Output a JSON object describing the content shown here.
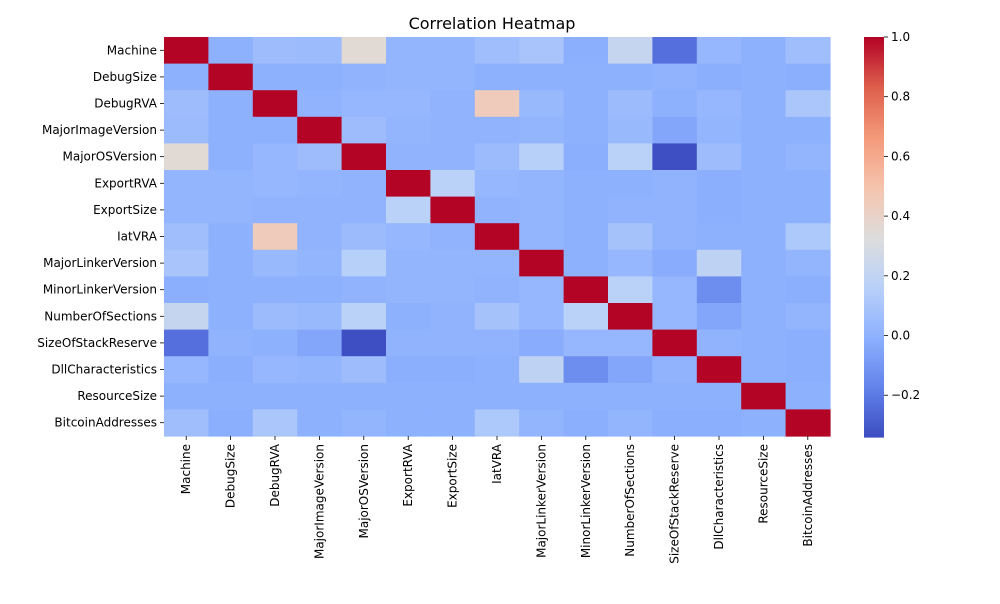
{
  "chart_data": {
    "type": "heatmap",
    "title": "Correlation Heatmap",
    "xlabel": "",
    "ylabel": "",
    "labels": [
      "Machine",
      "DebugSize",
      "DebugRVA",
      "MajorImageVersion",
      "MajorOSVersion",
      "ExportRVA",
      "ExportSize",
      "IatVRA",
      "MajorLinkerVersion",
      "MinorLinkerVersion",
      "NumberOfSections",
      "SizeOfStackReserve",
      "DllCharacteristics",
      "ResourceSize",
      "BitcoinAddresses"
    ],
    "matrix": [
      [
        1.0,
        0.0,
        0.06,
        0.05,
        0.36,
        0.02,
        0.02,
        0.07,
        0.1,
        -0.01,
        0.22,
        -0.23,
        0.03,
        0.0,
        0.07
      ],
      [
        0.0,
        1.0,
        0.0,
        0.0,
        0.01,
        0.02,
        0.02,
        0.0,
        0.0,
        0.0,
        0.0,
        0.01,
        -0.01,
        0.0,
        -0.01
      ],
      [
        0.06,
        0.0,
        1.0,
        0.01,
        0.03,
        0.03,
        0.01,
        0.45,
        0.04,
        0.0,
        0.05,
        0.0,
        0.03,
        0.0,
        0.11
      ],
      [
        0.05,
        0.0,
        0.0,
        1.0,
        0.06,
        0.02,
        0.01,
        0.01,
        0.02,
        0.0,
        0.04,
        -0.04,
        0.02,
        0.0,
        0.0
      ],
      [
        0.36,
        0.0,
        0.03,
        0.06,
        1.0,
        0.01,
        0.01,
        0.05,
        0.16,
        -0.01,
        0.17,
        -0.33,
        0.06,
        0.0,
        0.02
      ],
      [
        0.02,
        0.02,
        0.03,
        0.02,
        0.01,
        1.0,
        0.17,
        0.03,
        0.02,
        0.0,
        0.0,
        0.01,
        -0.01,
        0.0,
        0.0
      ],
      [
        0.02,
        0.02,
        0.01,
        0.01,
        0.01,
        0.17,
        1.0,
        0.01,
        0.02,
        0.0,
        0.01,
        0.01,
        -0.01,
        0.0,
        0.0
      ],
      [
        0.07,
        0.0,
        0.45,
        0.01,
        0.05,
        0.03,
        0.01,
        1.0,
        0.02,
        0.0,
        0.09,
        0.01,
        0.0,
        0.0,
        0.12
      ],
      [
        0.1,
        0.0,
        0.04,
        0.02,
        0.16,
        0.02,
        0.02,
        0.02,
        1.0,
        0.0,
        0.03,
        -0.02,
        0.19,
        0.0,
        0.02
      ],
      [
        -0.01,
        0.0,
        0.0,
        0.0,
        0.01,
        0.02,
        0.02,
        0.01,
        0.03,
        1.0,
        0.17,
        0.03,
        -0.13,
        0.0,
        -0.01
      ],
      [
        0.22,
        0.0,
        0.05,
        0.04,
        0.17,
        0.0,
        0.01,
        0.09,
        0.03,
        0.17,
        1.0,
        0.03,
        -0.04,
        0.0,
        0.02
      ],
      [
        -0.23,
        0.01,
        0.0,
        -0.04,
        -0.33,
        0.01,
        0.01,
        0.01,
        -0.02,
        0.03,
        0.03,
        1.0,
        0.01,
        0.0,
        -0.01
      ],
      [
        0.03,
        -0.01,
        0.03,
        0.02,
        0.06,
        -0.01,
        -0.01,
        0.0,
        0.19,
        -0.13,
        -0.04,
        0.01,
        1.0,
        0.0,
        -0.01
      ],
      [
        0.0,
        0.0,
        0.0,
        0.0,
        0.0,
        0.0,
        0.0,
        0.0,
        0.0,
        0.0,
        0.0,
        0.0,
        0.0,
        1.0,
        0.0
      ],
      [
        0.07,
        -0.01,
        0.11,
        0.0,
        0.02,
        0.0,
        0.0,
        0.12,
        0.02,
        -0.01,
        0.02,
        -0.01,
        -0.01,
        0.0,
        1.0
      ]
    ],
    "colormap": "coolwarm",
    "colorbar": {
      "vmin": -0.34,
      "vmax": 1.0,
      "ticks": [
        -0.2,
        0.0,
        0.2,
        0.4,
        0.6,
        0.8,
        1.0
      ],
      "tick_labels": [
        "−0.2",
        "0.0",
        "0.2",
        "0.4",
        "0.6",
        "0.8",
        "1.0"
      ]
    },
    "grid": false,
    "legend": "colorbar-right"
  }
}
